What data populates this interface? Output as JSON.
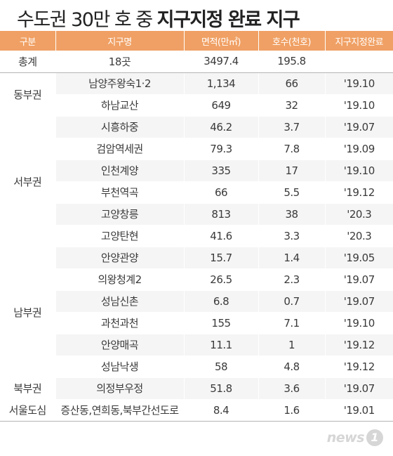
{
  "title_light": "수도권 30만 호 중",
  "title_bold": "지구지정 완료 지구",
  "headers": [
    "구분",
    "지구명",
    "면적(만㎡)",
    "호수(천호)",
    "지구지정완료"
  ],
  "total": {
    "label": "총계",
    "name": "18곳",
    "area": "3497.4",
    "units": "195.8",
    "date": ""
  },
  "groups": [
    {
      "region": "동부권",
      "rows": [
        {
          "name": "남양주왕숙1·2",
          "area": "1,134",
          "units": "66",
          "date": "'19.10"
        },
        {
          "name": "하남교산",
          "area": "649",
          "units": "32",
          "date": "'19.10"
        }
      ]
    },
    {
      "region": "서부권",
      "rows": [
        {
          "name": "시흥하중",
          "area": "46.2",
          "units": "3.7",
          "date": "'19.07"
        },
        {
          "name": "검암역세권",
          "area": "79.3",
          "units": "7.8",
          "date": "'19.09"
        },
        {
          "name": "인천계양",
          "area": "335",
          "units": "17",
          "date": "'19.10"
        },
        {
          "name": "부천역곡",
          "area": "66",
          "units": "5.5",
          "date": "'19.12"
        },
        {
          "name": "고양창릉",
          "area": "813",
          "units": "38",
          "date": "'20.3"
        },
        {
          "name": "고양탄현",
          "area": "41.6",
          "units": "3.3",
          "date": "'20.3"
        }
      ]
    },
    {
      "region": "남부권",
      "rows": [
        {
          "name": "안양관양",
          "area": "15.7",
          "units": "1.4",
          "date": "'19.05"
        },
        {
          "name": "의왕청계2",
          "area": "26.5",
          "units": "2.3",
          "date": "'19.07"
        },
        {
          "name": "성남신촌",
          "area": "6.8",
          "units": "0.7",
          "date": "'19.07"
        },
        {
          "name": "과천과천",
          "area": "155",
          "units": "7.1",
          "date": "'19.10"
        },
        {
          "name": "안양매곡",
          "area": "11.1",
          "units": "1",
          "date": "'19.12"
        },
        {
          "name": "성남낙생",
          "area": "58",
          "units": "4.8",
          "date": "'19.12"
        }
      ]
    },
    {
      "region": "북부권",
      "rows": [
        {
          "name": "의정부우정",
          "area": "51.8",
          "units": "3.6",
          "date": "'19.07"
        }
      ]
    },
    {
      "region": "서울도심",
      "rows": [
        {
          "name": "증산동,연희동,북부간선도로",
          "area": "8.4",
          "units": "1.6",
          "date": "'19.01"
        }
      ]
    }
  ],
  "logo": {
    "text": "news",
    "badge": "1"
  },
  "colors": {
    "header_bg": "#f0a064",
    "row_shade": "#f5f5f5",
    "divider": "#b5b5b5"
  }
}
